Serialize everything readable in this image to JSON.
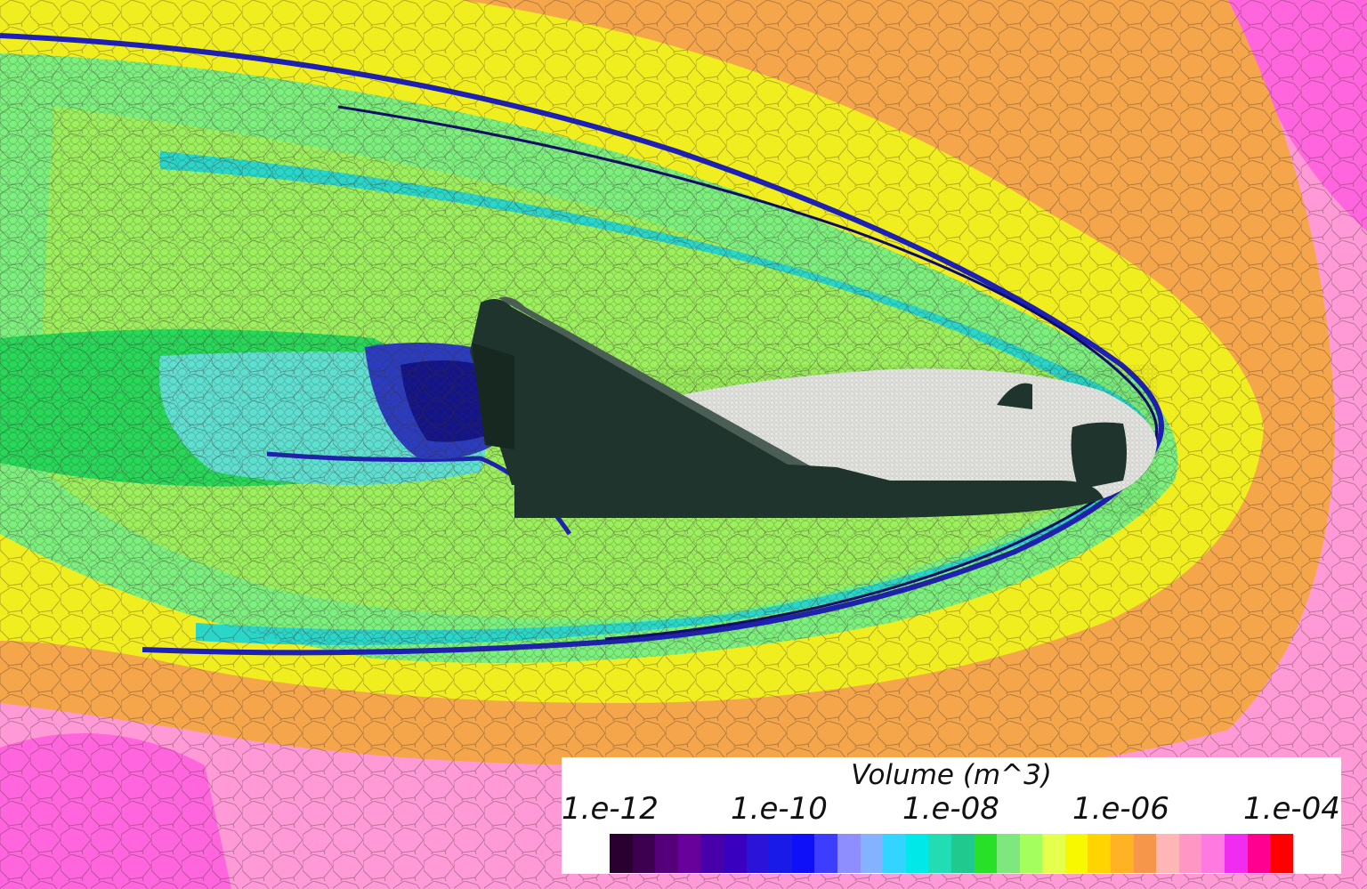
{
  "legend": {
    "title": "Volume (m^3)",
    "ticks": [
      "1.e-12",
      "1.e-10",
      "1.e-08",
      "1.e-06",
      "1.e-04"
    ],
    "colors": [
      "#2a0030",
      "#3d0050",
      "#55007a",
      "#68009c",
      "#4800aa",
      "#3a00c0",
      "#2b14d8",
      "#1a1ae8",
      "#0f0ff8",
      "#3d3dff",
      "#8e8eff",
      "#84b2ff",
      "#33d4ff",
      "#00e8e8",
      "#22dcb4",
      "#20c98e",
      "#28e028",
      "#7ee87e",
      "#a4ff5e",
      "#e4ff4c",
      "#f8f800",
      "#ffd400",
      "#ffb224",
      "#f5964a",
      "#ffb6b6",
      "#ff96c4",
      "#ff7ae0",
      "#f02cf0",
      "#ff0090",
      "#ff0000"
    ]
  },
  "field": {
    "colors": {
      "far": "#ff9ad6",
      "magenta": "#ff66dd",
      "orange": "#f5a54a",
      "yellow": "#f0ee1e",
      "green": "#7cf07c",
      "cyan": "#2ad6c8",
      "blue": "#1c20b8",
      "dark_blue": "#0a0a6a",
      "vehicle_dark": "#1e342c",
      "vehicle_light": "#e4e4e0"
    }
  }
}
